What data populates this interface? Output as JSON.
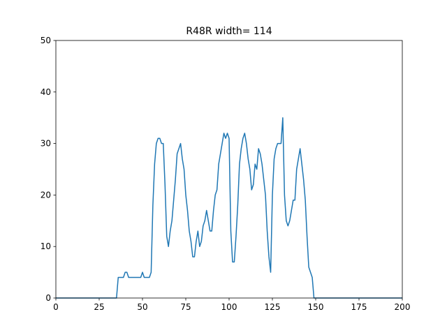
{
  "chart_data": {
    "type": "line",
    "title": "R48R width= 114",
    "x": [
      0,
      35,
      36,
      37,
      38,
      39,
      40,
      41,
      42,
      43,
      44,
      45,
      46,
      47,
      48,
      49,
      50,
      51,
      52,
      53,
      54,
      55,
      56,
      57,
      58,
      59,
      60,
      61,
      62,
      63,
      64,
      65,
      66,
      67,
      68,
      69,
      70,
      71,
      72,
      73,
      74,
      75,
      76,
      77,
      78,
      79,
      80,
      81,
      82,
      83,
      84,
      85,
      86,
      87,
      88,
      89,
      90,
      91,
      92,
      93,
      94,
      95,
      96,
      97,
      98,
      99,
      100,
      101,
      102,
      103,
      104,
      105,
      106,
      107,
      108,
      109,
      110,
      111,
      112,
      113,
      114,
      115,
      116,
      117,
      118,
      119,
      120,
      121,
      122,
      123,
      124,
      125,
      126,
      127,
      128,
      129,
      130,
      131,
      132,
      133,
      134,
      135,
      136,
      137,
      138,
      139,
      140,
      141,
      142,
      143,
      144,
      145,
      146,
      147,
      148,
      149,
      200
    ],
    "series": [
      {
        "color": "#1f77b4",
        "values": [
          0,
          0,
          4,
          4,
          4,
          4,
          5,
          5,
          4,
          4,
          4,
          4,
          4,
          4,
          4,
          4,
          5,
          4,
          4,
          4,
          4,
          5,
          18,
          26,
          30,
          31,
          31,
          30,
          30,
          22,
          12,
          10,
          13,
          15,
          19,
          23,
          28,
          29,
          30,
          27,
          25,
          20,
          17,
          13,
          11,
          8,
          8,
          11,
          13,
          10,
          11,
          14,
          15,
          17,
          15,
          13,
          13,
          17,
          20,
          21,
          26,
          28,
          30,
          32,
          31,
          32,
          31,
          13,
          7,
          7,
          12,
          18,
          26,
          29,
          31,
          32,
          30,
          27,
          25,
          21,
          22,
          26,
          25,
          29,
          28,
          26,
          23,
          20,
          13,
          8,
          5,
          20,
          27,
          29,
          30,
          30,
          30,
          35,
          20,
          15,
          14,
          15,
          17,
          19,
          19,
          25,
          27,
          29,
          26,
          23,
          19,
          12,
          6,
          5,
          4,
          0,
          0
        ]
      }
    ],
    "xlim": [
      0,
      200
    ],
    "xticks": [
      0,
      25,
      50,
      75,
      100,
      125,
      150,
      175,
      200
    ],
    "ylim": [
      0,
      50
    ],
    "yticks": [
      0,
      10,
      20,
      30,
      40,
      50
    ]
  }
}
